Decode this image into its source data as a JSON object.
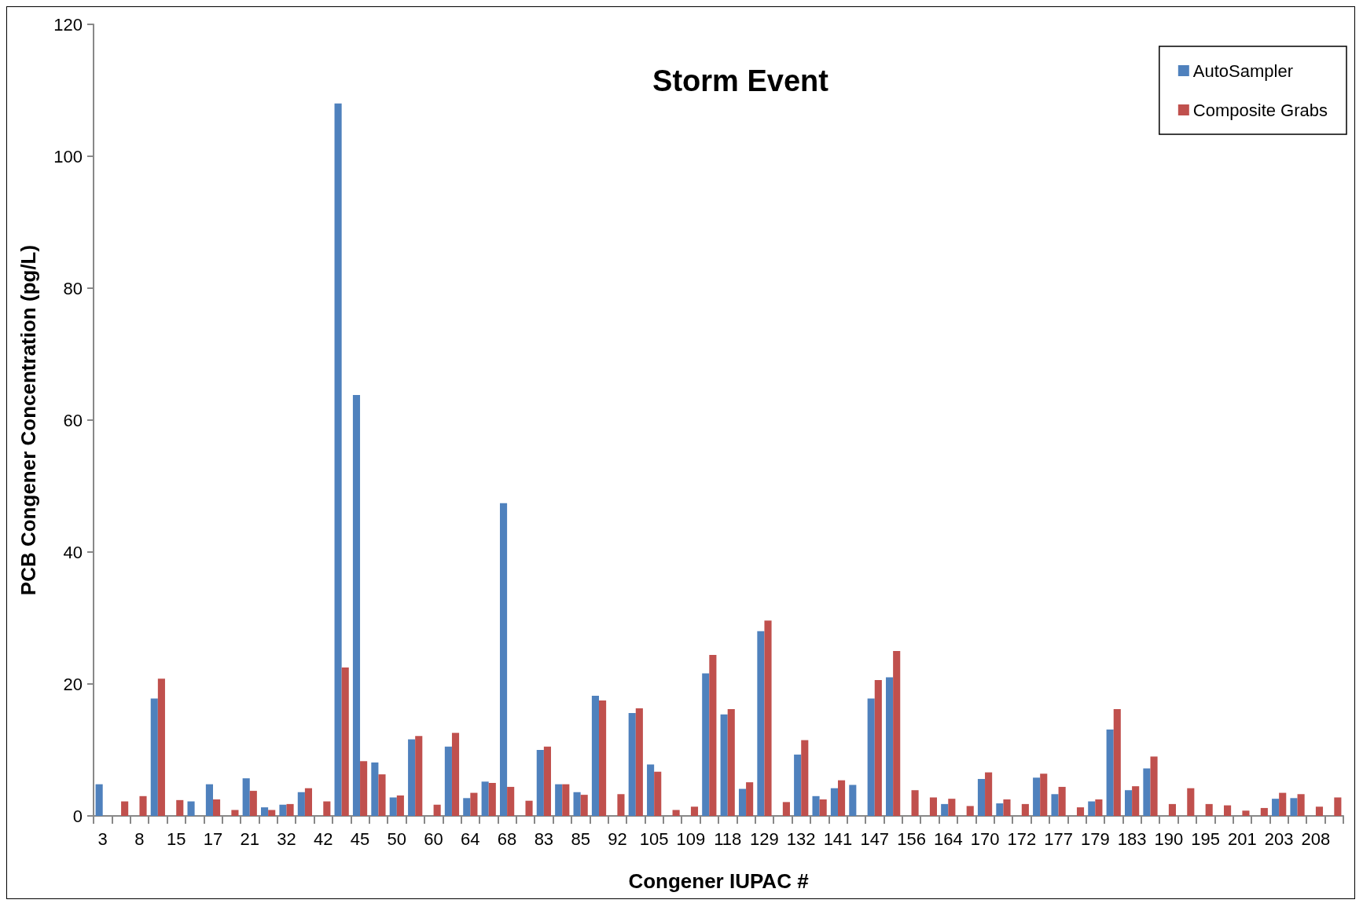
{
  "chart_data": {
    "type": "bar",
    "title": "Storm Event",
    "xlabel": "Congener IUPAC #",
    "ylabel": "PCB Congener Concentration (pg/L)",
    "categories": [
      "3",
      null,
      "8",
      null,
      "15",
      null,
      "17",
      null,
      "21",
      null,
      "32",
      null,
      "42",
      null,
      "45",
      null,
      "50",
      null,
      "60",
      null,
      "64",
      null,
      "68",
      null,
      "83",
      null,
      "85",
      null,
      "92",
      null,
      "105",
      null,
      "109",
      null,
      "118",
      null,
      "129",
      null,
      "132",
      null,
      "141",
      null,
      "147",
      null,
      "156",
      null,
      "164",
      null,
      "170",
      null,
      "172",
      null,
      "177",
      null,
      "179",
      null,
      "183",
      null,
      "190",
      null,
      "195",
      null,
      "201",
      null,
      "203",
      null,
      "208",
      null
    ],
    "series": [
      {
        "name": "AutoSampler",
        "color": "#4f81bd",
        "values": [
          4.8,
          null,
          null,
          17.8,
          null,
          2.2,
          4.8,
          null,
          5.7,
          1.3,
          1.7,
          3.6,
          null,
          108,
          63.8,
          8.1,
          2.8,
          11.6,
          null,
          10.5,
          2.7,
          5.2,
          47.4,
          null,
          10.0,
          4.8,
          3.6,
          18.2,
          null,
          15.6,
          7.8,
          null,
          null,
          21.6,
          15.4,
          4.1,
          28.0,
          null,
          9.3,
          3.0,
          4.2,
          4.7,
          17.8,
          21.0,
          null,
          null,
          1.8,
          null,
          5.6,
          1.9,
          null,
          5.8,
          3.3,
          null,
          2.2,
          13.1,
          3.9,
          7.2,
          null,
          null,
          null,
          null,
          null,
          null,
          2.6,
          2.7,
          null,
          null
        ]
      },
      {
        "name": "Composite Grabs",
        "color": "#c0504d",
        "values": [
          null,
          2.2,
          3.0,
          20.8,
          2.4,
          null,
          2.5,
          0.9,
          3.8,
          0.9,
          1.8,
          4.2,
          2.2,
          22.5,
          8.3,
          6.3,
          3.1,
          12.1,
          1.7,
          12.6,
          3.5,
          5.0,
          4.4,
          2.3,
          10.5,
          4.8,
          3.2,
          17.5,
          3.3,
          16.3,
          6.7,
          0.9,
          1.4,
          24.4,
          16.2,
          5.1,
          29.6,
          2.1,
          11.5,
          2.5,
          5.4,
          null,
          20.6,
          25.0,
          3.9,
          2.8,
          2.6,
          1.5,
          6.6,
          2.5,
          1.8,
          6.4,
          4.4,
          1.3,
          2.5,
          16.2,
          4.5,
          9.0,
          1.8,
          4.2,
          1.8,
          1.6,
          0.8,
          1.2,
          3.5,
          3.3,
          1.4,
          2.8
        ]
      }
    ],
    "ylim": [
      0,
      120
    ],
    "yticks": [
      0,
      20,
      40,
      60,
      80,
      100,
      120
    ],
    "grid": false,
    "legend": "top right"
  }
}
